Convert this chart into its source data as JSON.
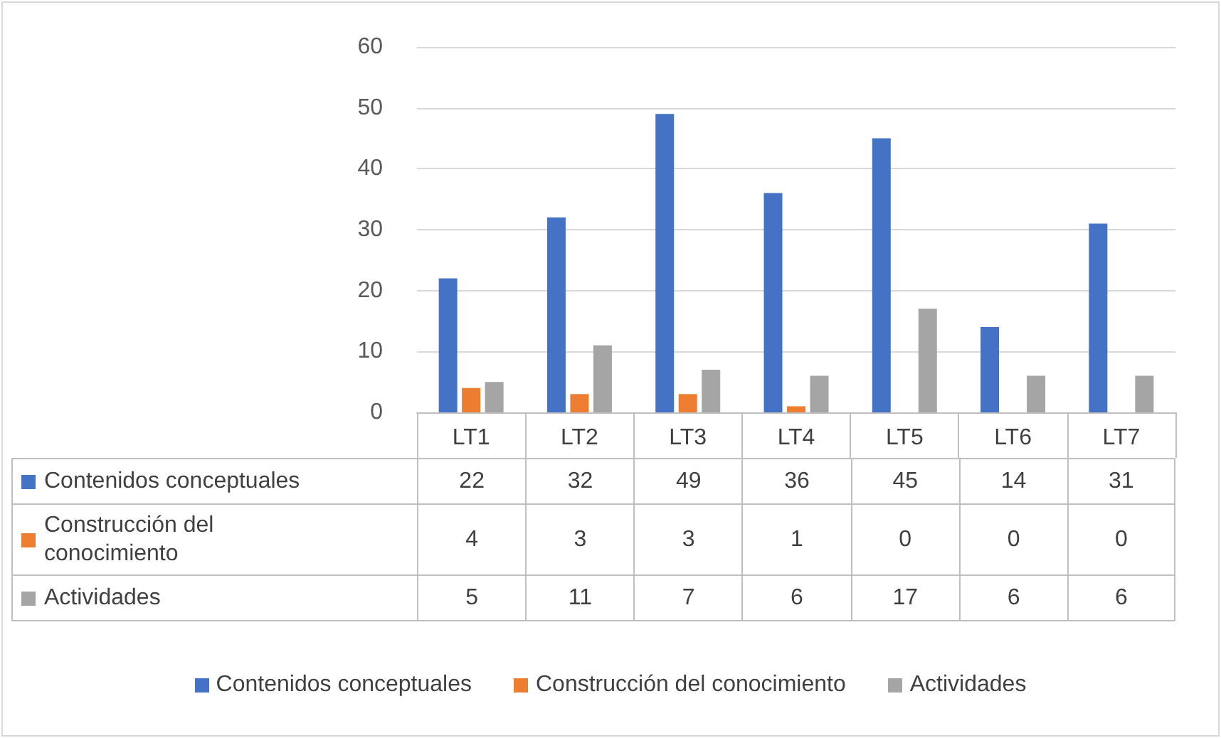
{
  "chart_data": {
    "type": "bar",
    "categories": [
      "LT1",
      "LT2",
      "LT3",
      "LT4",
      "LT5",
      "LT6",
      "LT7"
    ],
    "series": [
      {
        "name": "Contenidos conceptuales",
        "color": "#4472c4",
        "values": [
          22,
          32,
          49,
          36,
          45,
          14,
          31
        ]
      },
      {
        "name": "Construcción del conocimiento",
        "color": "#ed7d31",
        "values": [
          4,
          3,
          3,
          1,
          0,
          0,
          0
        ]
      },
      {
        "name": "Actividades",
        "color": "#a5a5a5",
        "values": [
          5,
          11,
          7,
          6,
          17,
          6,
          6
        ]
      }
    ],
    "ylim": [
      0,
      60
    ],
    "yticks": [
      0,
      10,
      20,
      30,
      40,
      50,
      60
    ],
    "grid": "y",
    "legend": "bottom",
    "data_labels": true
  }
}
